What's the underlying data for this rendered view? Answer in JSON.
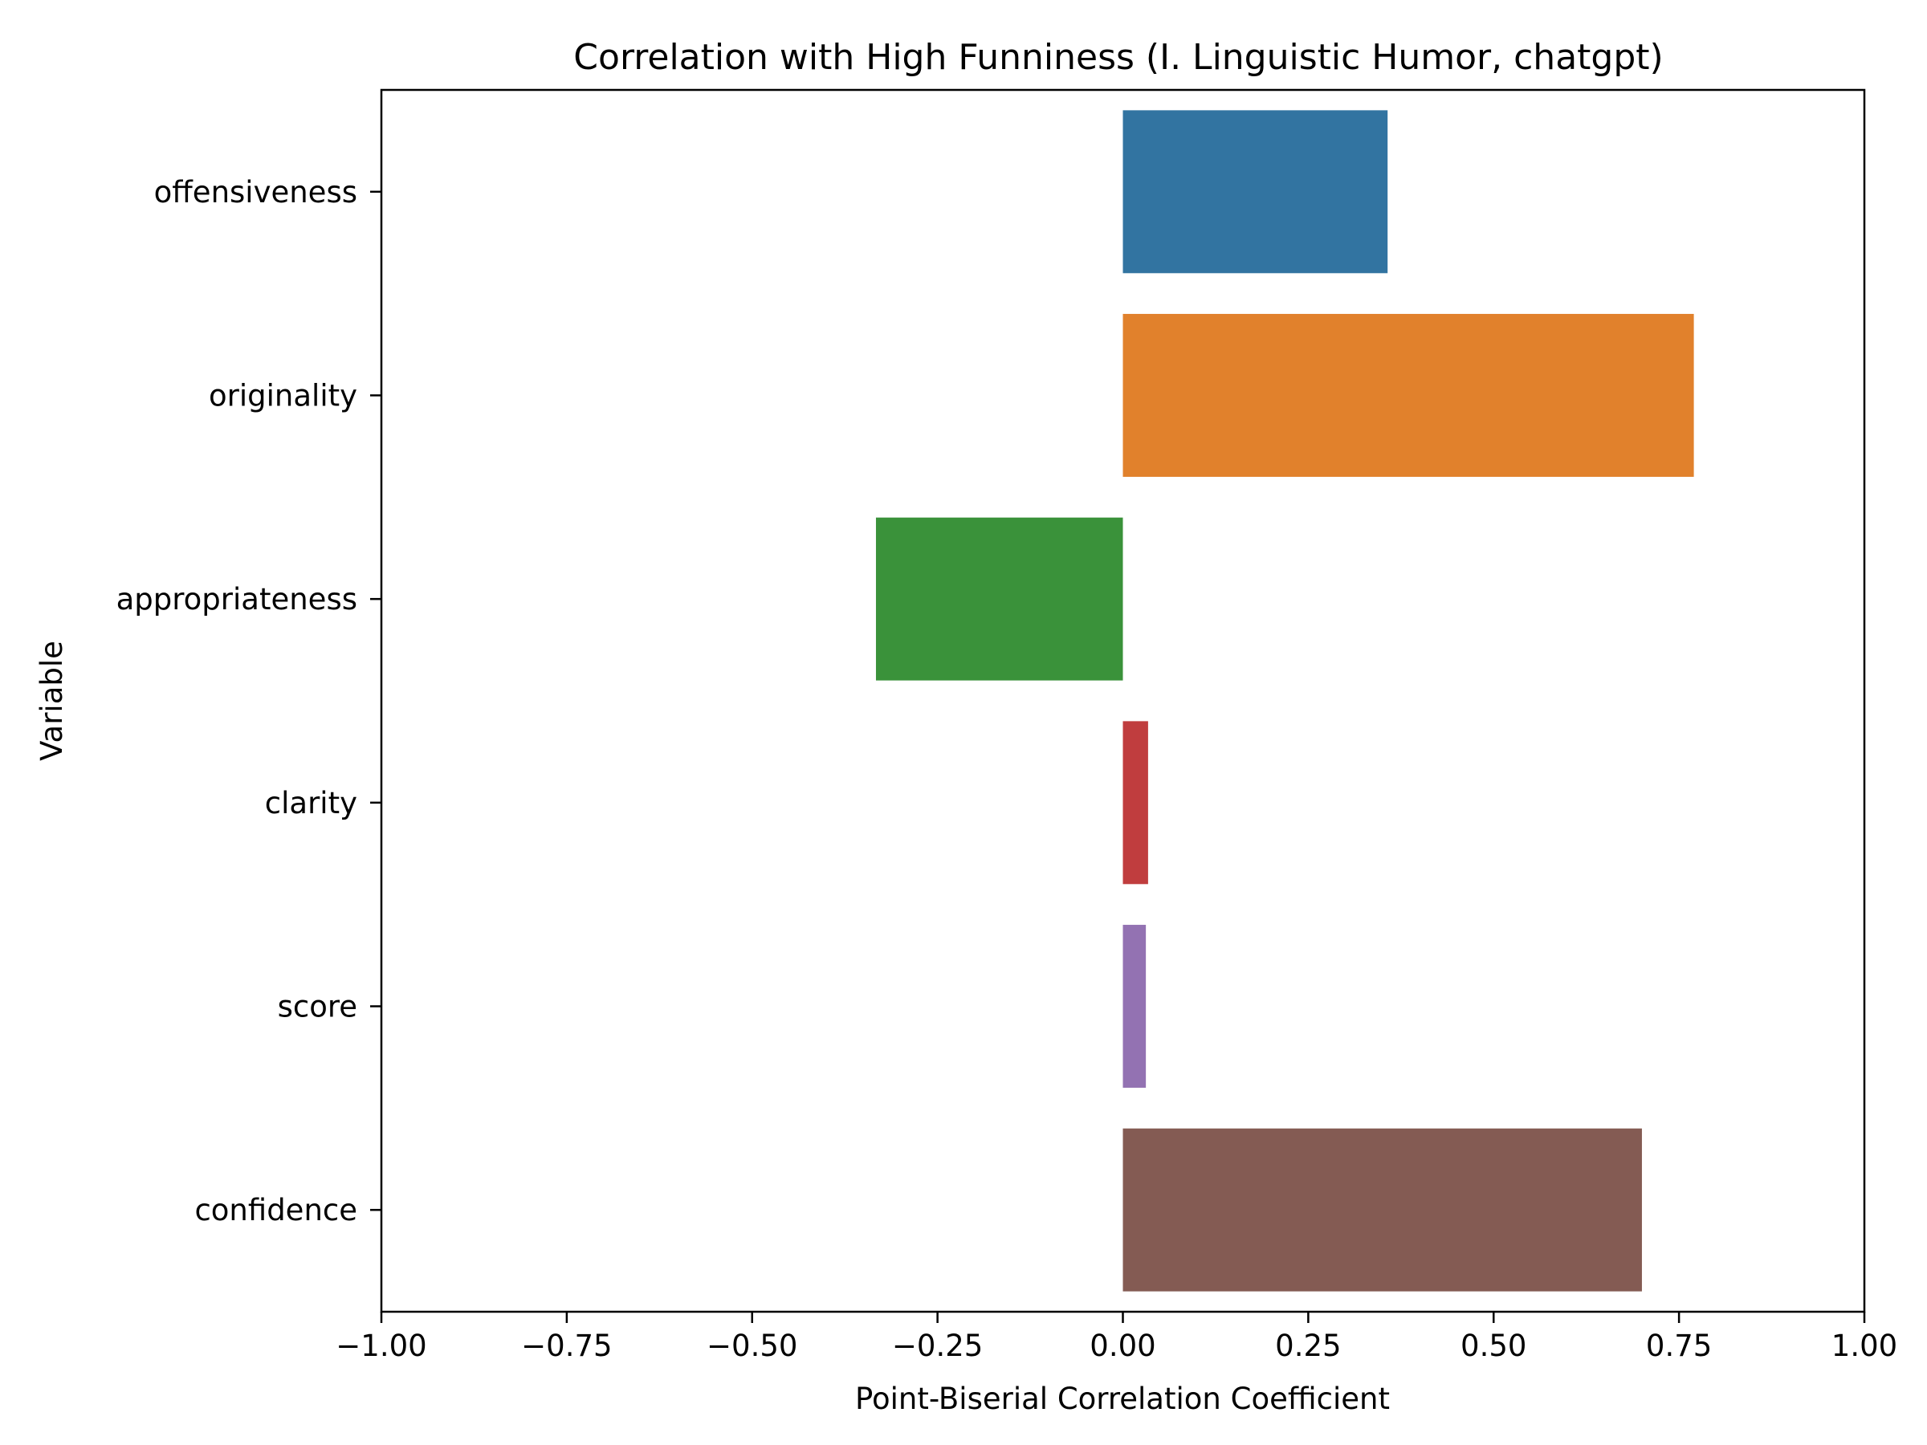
{
  "chart_data": {
    "type": "bar",
    "orientation": "horizontal",
    "title": "Correlation with High Funniness (I. Linguistic Humor, chatgpt)",
    "xlabel": "Point-Biserial Correlation Coefficient",
    "ylabel": "Variable",
    "xlim": [
      -1.0,
      1.0
    ],
    "xticks": [
      -1.0,
      -0.75,
      -0.5,
      -0.25,
      0.0,
      0.25,
      0.5,
      0.75,
      1.0
    ],
    "xtick_labels": [
      "−1.00",
      "−0.75",
      "−0.50",
      "−0.25",
      "0.00",
      "0.25",
      "0.50",
      "0.75",
      "1.00"
    ],
    "categories": [
      "offensiveness",
      "originality",
      "appropriateness",
      "clarity",
      "score",
      "confidence"
    ],
    "values": [
      0.357,
      0.77,
      -0.333,
      0.034,
      0.031,
      0.7
    ],
    "colors": [
      "#3274a1",
      "#e1812c",
      "#3a923a",
      "#c03d3e",
      "#9372b2",
      "#845b53"
    ],
    "grid": false,
    "legend": "none"
  }
}
